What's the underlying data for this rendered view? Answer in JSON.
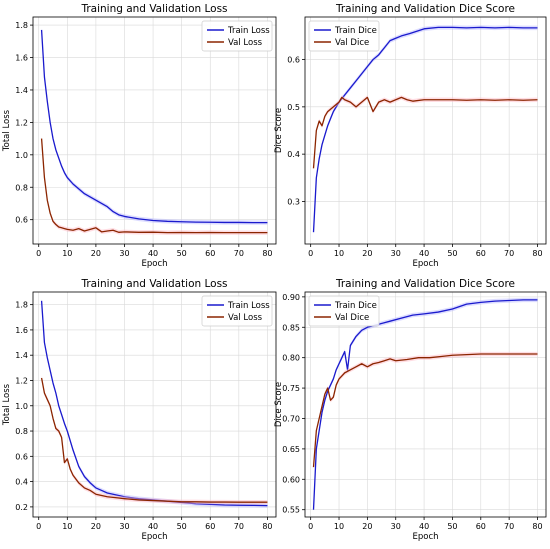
{
  "colors": {
    "train": "#1a1acd",
    "val": "#8b2500",
    "val_band": "#ffb3c0",
    "train_band": "#b3b3ff"
  },
  "chart_data": [
    {
      "type": "line",
      "title": "Training and Validation Loss",
      "xlabel": "Epoch",
      "ylabel": "Total Loss",
      "xlim": [
        -2,
        83
      ],
      "ylim": [
        0.45,
        1.85
      ],
      "xticks": [
        0,
        10,
        20,
        30,
        40,
        50,
        60,
        70,
        80
      ],
      "yticks": [
        0.6,
        0.8,
        1.0,
        1.2,
        1.4,
        1.6,
        1.8
      ],
      "legend_position": "top-right",
      "grid": true,
      "series": [
        {
          "name": "Train Loss",
          "key": "train",
          "x": [
            1,
            2,
            3,
            4,
            5,
            6,
            7,
            8,
            9,
            10,
            12,
            14,
            16,
            18,
            20,
            22,
            24,
            26,
            28,
            30,
            35,
            40,
            45,
            50,
            55,
            60,
            65,
            70,
            75,
            80
          ],
          "y": [
            1.77,
            1.48,
            1.33,
            1.2,
            1.1,
            1.03,
            0.98,
            0.93,
            0.89,
            0.86,
            0.82,
            0.79,
            0.76,
            0.74,
            0.72,
            0.7,
            0.68,
            0.65,
            0.63,
            0.62,
            0.605,
            0.595,
            0.59,
            0.587,
            0.585,
            0.584,
            0.583,
            0.583,
            0.582,
            0.582
          ]
        },
        {
          "name": "Val Loss",
          "key": "val",
          "x": [
            1,
            2,
            3,
            4,
            5,
            6,
            7,
            8,
            9,
            10,
            12,
            14,
            16,
            18,
            20,
            22,
            24,
            26,
            28,
            30,
            35,
            40,
            45,
            50,
            55,
            60,
            65,
            70,
            75,
            80
          ],
          "y": [
            1.1,
            0.86,
            0.72,
            0.64,
            0.59,
            0.57,
            0.555,
            0.55,
            0.545,
            0.54,
            0.535,
            0.545,
            0.53,
            0.54,
            0.55,
            0.525,
            0.53,
            0.535,
            0.522,
            0.525,
            0.522,
            0.523,
            0.52,
            0.521,
            0.52,
            0.521,
            0.52,
            0.52,
            0.52,
            0.52
          ]
        }
      ]
    },
    {
      "type": "line",
      "title": "Training and Validation Dice Score",
      "xlabel": "Epoch",
      "ylabel": "Dice Score",
      "xlim": [
        -2,
        83
      ],
      "ylim": [
        0.21,
        0.69
      ],
      "xticks": [
        0,
        10,
        20,
        30,
        40,
        50,
        60,
        70,
        80
      ],
      "yticks": [
        0.3,
        0.4,
        0.5,
        0.6
      ],
      "legend_position": "top-left",
      "grid": true,
      "series": [
        {
          "name": "Train Dice",
          "key": "train",
          "x": [
            1,
            2,
            3,
            4,
            5,
            6,
            7,
            8,
            9,
            10,
            12,
            14,
            16,
            18,
            20,
            22,
            24,
            26,
            28,
            30,
            32,
            35,
            40,
            45,
            50,
            55,
            60,
            65,
            70,
            75,
            80
          ],
          "y": [
            0.235,
            0.35,
            0.39,
            0.42,
            0.44,
            0.46,
            0.475,
            0.49,
            0.5,
            0.51,
            0.525,
            0.54,
            0.555,
            0.57,
            0.585,
            0.6,
            0.61,
            0.625,
            0.64,
            0.645,
            0.65,
            0.655,
            0.665,
            0.668,
            0.668,
            0.667,
            0.668,
            0.667,
            0.668,
            0.667,
            0.667
          ]
        },
        {
          "name": "Val Dice",
          "key": "val",
          "x": [
            1,
            2,
            3,
            4,
            5,
            6,
            7,
            8,
            9,
            10,
            11,
            12,
            14,
            16,
            18,
            20,
            22,
            24,
            26,
            28,
            30,
            32,
            34,
            36,
            40,
            45,
            50,
            55,
            60,
            65,
            70,
            75,
            80
          ],
          "y": [
            0.37,
            0.45,
            0.47,
            0.46,
            0.48,
            0.49,
            0.495,
            0.5,
            0.505,
            0.51,
            0.52,
            0.515,
            0.51,
            0.5,
            0.51,
            0.52,
            0.49,
            0.51,
            0.515,
            0.51,
            0.515,
            0.52,
            0.515,
            0.512,
            0.515,
            0.515,
            0.515,
            0.514,
            0.515,
            0.514,
            0.515,
            0.514,
            0.515
          ]
        }
      ]
    },
    {
      "type": "line",
      "title": "Training and Validation Loss",
      "xlabel": "Epoch",
      "ylabel": "Total Loss",
      "xlim": [
        -2,
        83
      ],
      "ylim": [
        0.12,
        1.9
      ],
      "xticks": [
        0,
        10,
        20,
        30,
        40,
        50,
        60,
        70,
        80
      ],
      "yticks": [
        0.2,
        0.4,
        0.6,
        0.8,
        1.0,
        1.2,
        1.4,
        1.6,
        1.8
      ],
      "legend_position": "top-right",
      "grid": true,
      "series": [
        {
          "name": "Train Loss",
          "key": "train",
          "x": [
            1,
            2,
            3,
            4,
            5,
            6,
            7,
            8,
            9,
            10,
            12,
            14,
            16,
            18,
            20,
            22,
            24,
            26,
            28,
            30,
            35,
            40,
            45,
            50,
            55,
            60,
            65,
            70,
            75,
            80
          ],
          "y": [
            1.83,
            1.5,
            1.38,
            1.28,
            1.18,
            1.1,
            1.0,
            0.93,
            0.86,
            0.8,
            0.65,
            0.52,
            0.44,
            0.39,
            0.35,
            0.33,
            0.31,
            0.3,
            0.29,
            0.28,
            0.265,
            0.255,
            0.245,
            0.235,
            0.225,
            0.22,
            0.215,
            0.213,
            0.212,
            0.21
          ]
        },
        {
          "name": "Val Loss",
          "key": "val",
          "x": [
            1,
            2,
            3,
            4,
            5,
            6,
            7,
            8,
            9,
            10,
            11,
            12,
            14,
            16,
            18,
            20,
            22,
            24,
            26,
            28,
            30,
            35,
            40,
            45,
            50,
            55,
            60,
            65,
            70,
            75,
            80
          ],
          "y": [
            1.22,
            1.1,
            1.05,
            1.0,
            0.9,
            0.82,
            0.8,
            0.75,
            0.55,
            0.58,
            0.5,
            0.45,
            0.39,
            0.35,
            0.33,
            0.3,
            0.29,
            0.28,
            0.275,
            0.27,
            0.265,
            0.255,
            0.25,
            0.245,
            0.24,
            0.24,
            0.238,
            0.238,
            0.237,
            0.237,
            0.237
          ]
        }
      ]
    },
    {
      "type": "line",
      "title": "Training and Validation Dice Score",
      "xlabel": "Epoch",
      "ylabel": "Dice Score",
      "xlim": [
        -2,
        83
      ],
      "ylim": [
        0.538,
        0.908
      ],
      "xticks": [
        0,
        10,
        20,
        30,
        40,
        50,
        60,
        70,
        80
      ],
      "yticks": [
        0.55,
        0.6,
        0.65,
        0.7,
        0.75,
        0.8,
        0.85,
        0.9
      ],
      "legend_position": "top-left",
      "grid": true,
      "series": [
        {
          "name": "Train Dice",
          "key": "train",
          "x": [
            1,
            2,
            3,
            4,
            5,
            6,
            7,
            8,
            9,
            10,
            11,
            12,
            13,
            14,
            16,
            18,
            20,
            24,
            28,
            32,
            36,
            40,
            45,
            50,
            55,
            60,
            65,
            70,
            75,
            80
          ],
          "y": [
            0.55,
            0.65,
            0.68,
            0.71,
            0.73,
            0.745,
            0.755,
            0.765,
            0.78,
            0.79,
            0.8,
            0.81,
            0.78,
            0.82,
            0.835,
            0.845,
            0.85,
            0.855,
            0.86,
            0.865,
            0.87,
            0.872,
            0.875,
            0.88,
            0.888,
            0.891,
            0.893,
            0.894,
            0.895,
            0.895
          ]
        },
        {
          "name": "Val Dice",
          "key": "val",
          "x": [
            1,
            2,
            3,
            4,
            5,
            6,
            7,
            8,
            9,
            10,
            11,
            12,
            14,
            16,
            18,
            20,
            22,
            24,
            26,
            28,
            30,
            34,
            38,
            42,
            46,
            50,
            55,
            60,
            65,
            70,
            75,
            80
          ],
          "y": [
            0.62,
            0.68,
            0.7,
            0.72,
            0.74,
            0.75,
            0.73,
            0.735,
            0.755,
            0.765,
            0.77,
            0.775,
            0.78,
            0.785,
            0.79,
            0.785,
            0.79,
            0.792,
            0.795,
            0.798,
            0.795,
            0.797,
            0.8,
            0.8,
            0.802,
            0.804,
            0.805,
            0.806,
            0.806,
            0.806,
            0.806,
            0.806
          ]
        }
      ]
    }
  ]
}
